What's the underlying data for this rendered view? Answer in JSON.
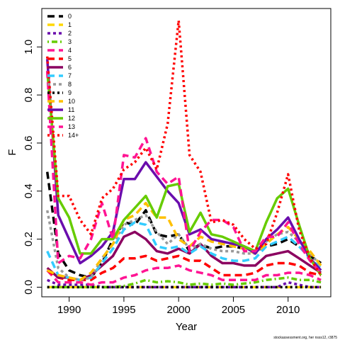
{
  "chart_data": {
    "type": "line",
    "xlabel": "Year",
    "ylabel": "F",
    "xlim": [
      1987.5,
      2013.9
    ],
    "ylim": [
      -0.04,
      1.16
    ],
    "x_ticks": [
      1990,
      1995,
      2000,
      2005,
      2010
    ],
    "y_ticks": [
      "0.0",
      "0.2",
      "0.4",
      "0.6",
      "0.8",
      "1.0"
    ],
    "y_tick_values": [
      0.0,
      0.2,
      0.4,
      0.6,
      0.8,
      1.0
    ],
    "grid": false,
    "legend_position": "top-left",
    "credit": "stockassessment.org, her nsss12, r3875",
    "x": [
      1988,
      1989,
      1990,
      1991,
      1992,
      1993,
      1994,
      1995,
      1996,
      1997,
      1998,
      1999,
      2000,
      2001,
      2002,
      2003,
      2004,
      2005,
      2006,
      2007,
      2008,
      2009,
      2010,
      2011,
      2012,
      2013
    ],
    "series": [
      {
        "name": "0",
        "color": "#000000",
        "dash": "long",
        "values": [
          0.48,
          0.14,
          0.07,
          0.05,
          0.04,
          0.1,
          0.2,
          0.27,
          0.26,
          0.32,
          0.22,
          0.21,
          0.22,
          0.15,
          0.18,
          0.16,
          0.17,
          0.17,
          0.16,
          0.15,
          0.17,
          0.18,
          0.2,
          0.17,
          0.13,
          0.1
        ]
      },
      {
        "name": "1",
        "color": "#ffd700",
        "dash": "long",
        "values": [
          0.0,
          0.0,
          0.0,
          0.0,
          0.0,
          0.0,
          0.0,
          0.0,
          0.0,
          0.0,
          0.0,
          0.0,
          0.0,
          0.0,
          0.0,
          0.0,
          0.0,
          0.0,
          0.0,
          0.0,
          0.0,
          0.0,
          0.0,
          0.0,
          0.0,
          0.0
        ]
      },
      {
        "name": "2",
        "color": "#6a0dad",
        "dash": "short",
        "values": [
          0.03,
          0.01,
          0.01,
          0.01,
          0.01,
          0.0,
          0.0,
          0.0,
          0.0,
          0.0,
          0.0,
          0.0,
          0.0,
          0.0,
          0.0,
          0.0,
          0.0,
          0.0,
          0.0,
          0.0,
          0.0,
          0.0,
          0.02,
          0.01,
          0.0,
          0.0
        ]
      },
      {
        "name": "3",
        "color": "#66cc00",
        "dash": "dotdash",
        "values": [
          0.0,
          0.0,
          0.0,
          0.0,
          0.0,
          0.0,
          0.0,
          0.005,
          0.015,
          0.03,
          0.02,
          0.025,
          0.02,
          0.01,
          0.015,
          0.01,
          0.015,
          0.01,
          0.015,
          0.02,
          0.03,
          0.035,
          0.04,
          0.03,
          0.03,
          0.02
        ]
      },
      {
        "name": "4",
        "color": "#ff1493",
        "dash": "long",
        "values": [
          0.07,
          0.02,
          0.02,
          0.02,
          0.01,
          0.02,
          0.02,
          0.04,
          0.05,
          0.07,
          0.08,
          0.08,
          0.09,
          0.07,
          0.06,
          0.05,
          0.03,
          0.03,
          0.03,
          0.03,
          0.05,
          0.05,
          0.06,
          0.06,
          0.05,
          0.03
        ]
      },
      {
        "name": "5",
        "color": "#ff0000",
        "dash": "long",
        "values": [
          0.07,
          0.04,
          0.03,
          0.03,
          0.03,
          0.06,
          0.08,
          0.12,
          0.12,
          0.13,
          0.11,
          0.12,
          0.13,
          0.11,
          0.11,
          0.08,
          0.05,
          0.05,
          0.05,
          0.06,
          0.09,
          0.1,
          0.1,
          0.09,
          0.06,
          0.05
        ]
      },
      {
        "name": "6",
        "color": "#8b0060",
        "dash": "solid",
        "values": [
          0.08,
          0.04,
          0.04,
          0.03,
          0.05,
          0.09,
          0.13,
          0.21,
          0.23,
          0.2,
          0.15,
          0.14,
          0.16,
          0.14,
          0.18,
          0.13,
          0.1,
          0.1,
          0.09,
          0.09,
          0.13,
          0.14,
          0.15,
          0.12,
          0.09,
          0.06
        ]
      },
      {
        "name": "7",
        "color": "#33ccff",
        "dash": "long",
        "values": [
          0.15,
          0.05,
          0.04,
          0.03,
          0.04,
          0.1,
          0.16,
          0.24,
          0.27,
          0.26,
          0.17,
          0.16,
          0.17,
          0.14,
          0.17,
          0.14,
          0.12,
          0.11,
          0.11,
          0.12,
          0.17,
          0.19,
          0.21,
          0.17,
          0.12,
          0.08
        ]
      },
      {
        "name": "8",
        "color": "#999999",
        "dash": "short",
        "values": [
          0.32,
          0.08,
          0.04,
          0.03,
          0.04,
          0.12,
          0.18,
          0.26,
          0.28,
          0.3,
          0.23,
          0.18,
          0.22,
          0.16,
          0.18,
          0.16,
          0.15,
          0.15,
          0.14,
          0.14,
          0.19,
          0.22,
          0.23,
          0.19,
          0.14,
          0.09
        ]
      },
      {
        "name": "9",
        "color": "#000000",
        "dash": "dotted",
        "values": [
          0.0,
          0.0,
          0.0,
          0.0,
          0.0,
          0.0,
          0.0,
          0.0,
          0.0,
          0.0,
          0.0,
          0.0,
          0.0,
          0.0,
          0.0,
          0.0,
          0.0,
          0.0,
          0.0,
          0.0,
          0.0,
          0.0,
          0.0,
          0.0,
          0.0,
          0.0
        ]
      },
      {
        "name": "10",
        "color": "#ffc000",
        "dash": "long",
        "values": [
          0.07,
          0.05,
          0.04,
          0.03,
          0.06,
          0.12,
          0.18,
          0.28,
          0.3,
          0.35,
          0.29,
          0.29,
          0.2,
          0.17,
          0.21,
          0.19,
          0.18,
          0.17,
          0.16,
          0.14,
          0.18,
          0.22,
          0.25,
          0.2,
          0.15,
          0.09
        ]
      },
      {
        "name": "11",
        "color": "#6a0dad",
        "dash": "solid",
        "values": [
          0.95,
          0.3,
          0.2,
          0.1,
          0.13,
          0.17,
          0.23,
          0.45,
          0.45,
          0.52,
          0.46,
          0.4,
          0.35,
          0.22,
          0.24,
          0.2,
          0.19,
          0.18,
          0.17,
          0.14,
          0.2,
          0.24,
          0.29,
          0.2,
          0.12,
          0.07
        ]
      },
      {
        "name": "12",
        "color": "#66cc00",
        "dash": "solid",
        "values": [
          0.9,
          0.37,
          0.29,
          0.14,
          0.14,
          0.2,
          0.2,
          0.28,
          0.33,
          0.38,
          0.29,
          0.42,
          0.43,
          0.23,
          0.31,
          0.22,
          0.21,
          0.19,
          0.17,
          0.15,
          0.27,
          0.37,
          0.41,
          0.26,
          0.12,
          0.05
        ]
      },
      {
        "name": "13",
        "color": "#ff1493",
        "dash": "long",
        "values": [
          0.9,
          0.1,
          0.13,
          0.12,
          0.2,
          0.35,
          0.2,
          0.55,
          0.54,
          0.62,
          0.48,
          0.43,
          0.46,
          0.15,
          0.23,
          0.28,
          0.28,
          0.25,
          0.15,
          0.15,
          0.21,
          0.21,
          0.27,
          0.18,
          0.11,
          0.06
        ]
      },
      {
        "name": "14+",
        "color": "#ff0000",
        "dash": "dotted",
        "values": [
          0.96,
          0.38,
          0.38,
          0.28,
          0.22,
          0.37,
          0.41,
          0.49,
          0.52,
          0.58,
          0.49,
          0.68,
          1.11,
          0.55,
          0.48,
          0.27,
          0.28,
          0.26,
          0.2,
          0.16,
          0.18,
          0.31,
          0.47,
          0.24,
          0.12,
          0.05
        ]
      }
    ]
  }
}
